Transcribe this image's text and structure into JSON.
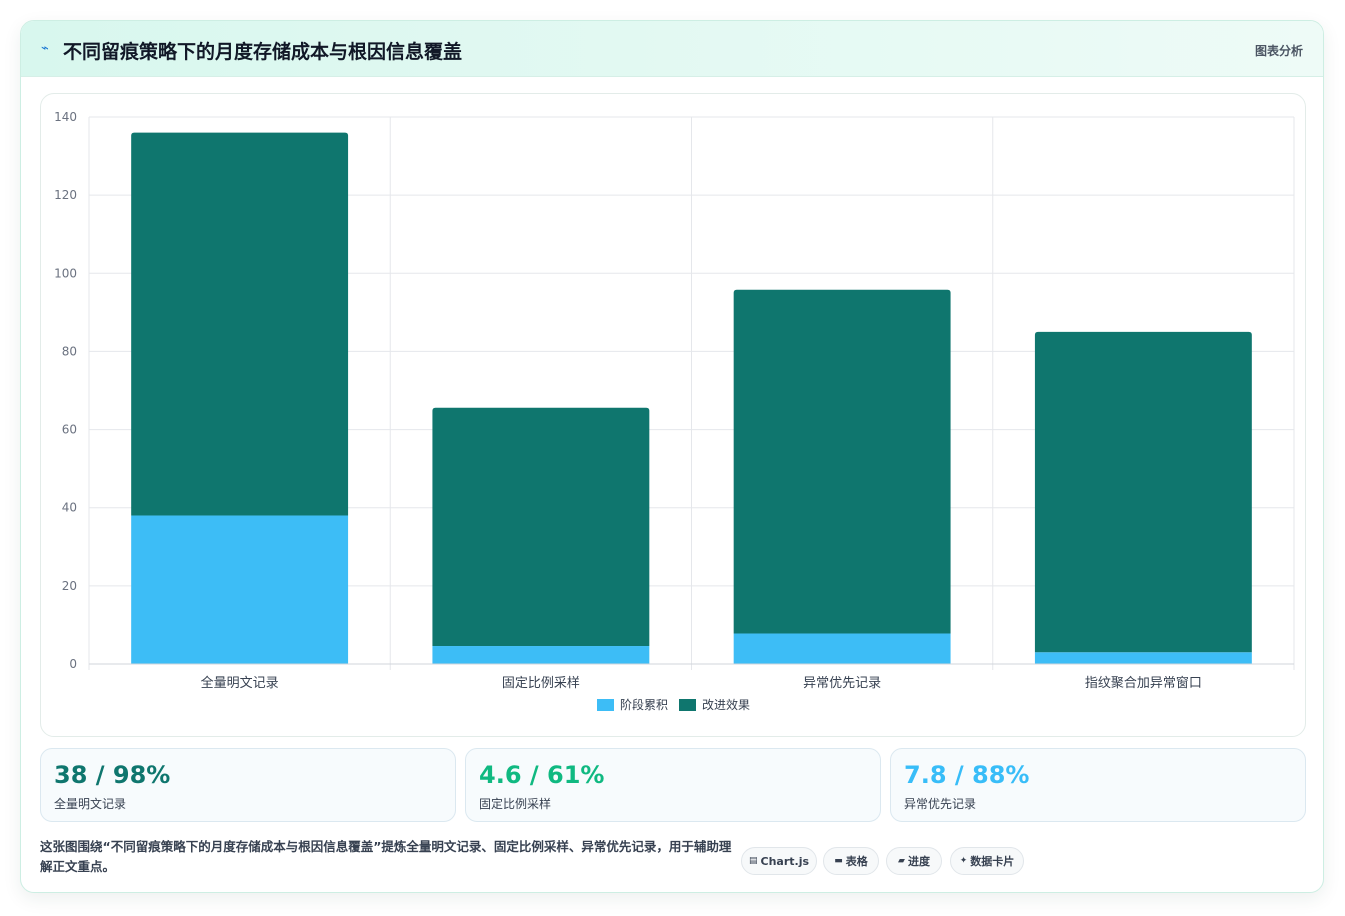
{
  "header": {
    "icon": "line-chart-icon",
    "title": "不同留痕策略下的月度存储成本与根因信息覆盖",
    "right_label": "图表分析"
  },
  "chart_data": {
    "type": "bar",
    "stacked": true,
    "categories": [
      "全量明文记录",
      "固定比例采样",
      "异常优先记录",
      "指纹聚合加异常窗口"
    ],
    "series": [
      {
        "name": "阶段累积",
        "color": "#3dbdf6",
        "values": [
          38,
          4.6,
          7.8,
          3
        ]
      },
      {
        "name": "改进效果",
        "color": "#0f766e",
        "values": [
          98,
          61,
          88,
          82
        ]
      }
    ],
    "ylim": [
      0,
      140
    ],
    "yticks": [
      0,
      20,
      40,
      60,
      80,
      100,
      120,
      140
    ],
    "grid": true,
    "legend": "bottom"
  },
  "stats": [
    {
      "value": "38 / 98%",
      "label": "全量明文记录",
      "color": "#0f766e"
    },
    {
      "value": "4.6 / 61%",
      "label": "固定比例采样",
      "color": "#10b981"
    },
    {
      "value": "7.8 / 88%",
      "label": "异常优先记录",
      "color": "#38bdf8"
    }
  ],
  "footer": {
    "description": "这张图围绕“不同留痕策略下的月度存储成本与根因信息覆盖”提炼全量明文记录、固定比例采样、异常优先记录，用于辅助理解正文重点。",
    "tags": [
      {
        "icon": "chart-icon",
        "label": "Chart.js"
      },
      {
        "icon": "table-icon",
        "label": "表格"
      },
      {
        "icon": "progress-icon",
        "label": "进度"
      },
      {
        "icon": "sparkle-icon",
        "label": "数据卡片"
      }
    ]
  }
}
